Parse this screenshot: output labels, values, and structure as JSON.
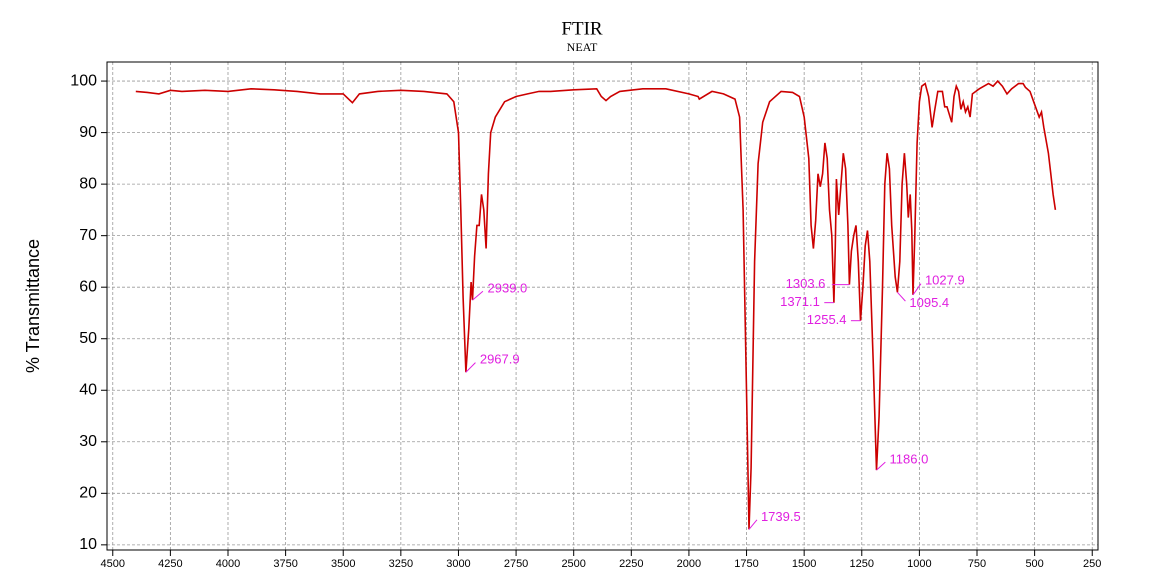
{
  "chart_data": {
    "type": "line",
    "title": "FTIR",
    "subtitle": "NEAT",
    "y_label": "% Transmittance",
    "color": "#cc0000",
    "annotation_color": "#e020e0",
    "grid": true,
    "x_reversed": true,
    "xlim": [
      4525,
      225
    ],
    "ylim": [
      9,
      103.7
    ],
    "xticks": [
      4500,
      4250,
      4000,
      3750,
      3500,
      3250,
      3000,
      2750,
      2500,
      2250,
      2000,
      1750,
      1500,
      1250,
      1000,
      750,
      500,
      250
    ],
    "yticks": [
      10,
      20,
      30,
      40,
      50,
      60,
      70,
      80,
      90,
      100
    ],
    "x": [
      4400,
      4350,
      4300,
      4250,
      4200,
      4100,
      4000,
      3900,
      3800,
      3700,
      3600,
      3500,
      3460,
      3430,
      3350,
      3250,
      3150,
      3050,
      3020,
      3000,
      2990,
      2980,
      2967.9,
      2955,
      2945,
      2939,
      2930,
      2920,
      2910,
      2900,
      2890,
      2880,
      2870,
      2860,
      2840,
      2800,
      2750,
      2700,
      2650,
      2600,
      2500,
      2400,
      2380,
      2360,
      2340,
      2300,
      2200,
      2100,
      2000,
      1960,
      1955,
      1900,
      1850,
      1800,
      1780,
      1765,
      1750,
      1739.5,
      1730,
      1715,
      1700,
      1680,
      1650,
      1600,
      1550,
      1520,
      1500,
      1480,
      1470,
      1460,
      1450,
      1440,
      1430,
      1420,
      1410,
      1400,
      1390,
      1380,
      1371.1,
      1365,
      1360,
      1350,
      1340,
      1330,
      1320,
      1310,
      1303.6,
      1295,
      1285,
      1275,
      1265,
      1255.4,
      1245,
      1235,
      1225,
      1215,
      1200,
      1186,
      1175,
      1160,
      1150,
      1140,
      1130,
      1120,
      1105,
      1095.4,
      1085,
      1075,
      1065,
      1055,
      1048,
      1040,
      1033,
      1027.9,
      1020,
      1010,
      1000,
      990,
      975,
      960,
      945,
      935,
      920,
      900,
      890,
      880,
      860,
      850,
      840,
      830,
      820,
      810,
      800,
      790,
      780,
      770,
      740,
      700,
      680,
      660,
      640,
      620,
      600,
      570,
      550,
      540,
      520,
      500,
      480,
      470,
      460,
      440,
      430,
      420,
      410
    ],
    "series": [
      {
        "name": "NEAT",
        "values": [
          98,
          97.8,
          97.5,
          98.2,
          98,
          98.2,
          98,
          98.5,
          98.3,
          98,
          97.5,
          97.5,
          95.8,
          97.5,
          98,
          98.2,
          98,
          97.5,
          96,
          90,
          75,
          58,
          43.5,
          52,
          61,
          57.5,
          66,
          72,
          72,
          78,
          75,
          67.5,
          82,
          90,
          93,
          96,
          97,
          97.5,
          98,
          98,
          98.3,
          98.5,
          97,
          96.2,
          97,
          98,
          98.5,
          98.5,
          97.5,
          97,
          96.5,
          98,
          97.5,
          96.5,
          93,
          75,
          40,
          13,
          25,
          65,
          84,
          92,
          96,
          98,
          97.8,
          97,
          93,
          85,
          72,
          67.5,
          73,
          82,
          79.5,
          82,
          88,
          85,
          75,
          70,
          57,
          68,
          81,
          74,
          80,
          86,
          83,
          72,
          60.5,
          67,
          70,
          72,
          65,
          53.5,
          60,
          68,
          71,
          65,
          45,
          24.5,
          35,
          60,
          80,
          86,
          83,
          72,
          62,
          59,
          65,
          80,
          86,
          80,
          73.5,
          78,
          71,
          58.5,
          70,
          88,
          96,
          99,
          99.5,
          97,
          91,
          94,
          98,
          98,
          95,
          95,
          92,
          97,
          99,
          98,
          94.5,
          96,
          94,
          95,
          93,
          97.5,
          98.5,
          99.5,
          99,
          100,
          99,
          97.5,
          98.5,
          99.5,
          99.5,
          98.8,
          98,
          95.5,
          93,
          94,
          91,
          86,
          82,
          78,
          75
        ]
      }
    ],
    "peaks": [
      {
        "label": "2967.9",
        "x": 2967.9,
        "y": 43.5
      },
      {
        "label": "2939.0",
        "x": 2939,
        "y": 57.5
      },
      {
        "label": "1739.5",
        "x": 1739.5,
        "y": 13
      },
      {
        "label": "1186.0",
        "x": 1186,
        "y": 24.5
      },
      {
        "label": "1303.6",
        "x": 1303.6,
        "y": 60.5
      },
      {
        "label": "1371.1",
        "x": 1371.1,
        "y": 57
      },
      {
        "label": "1255.4",
        "x": 1255.4,
        "y": 53.5
      },
      {
        "label": "1095.4",
        "x": 1095.4,
        "y": 59
      },
      {
        "label": "1027.9",
        "x": 1027.9,
        "y": 58.5
      }
    ]
  }
}
